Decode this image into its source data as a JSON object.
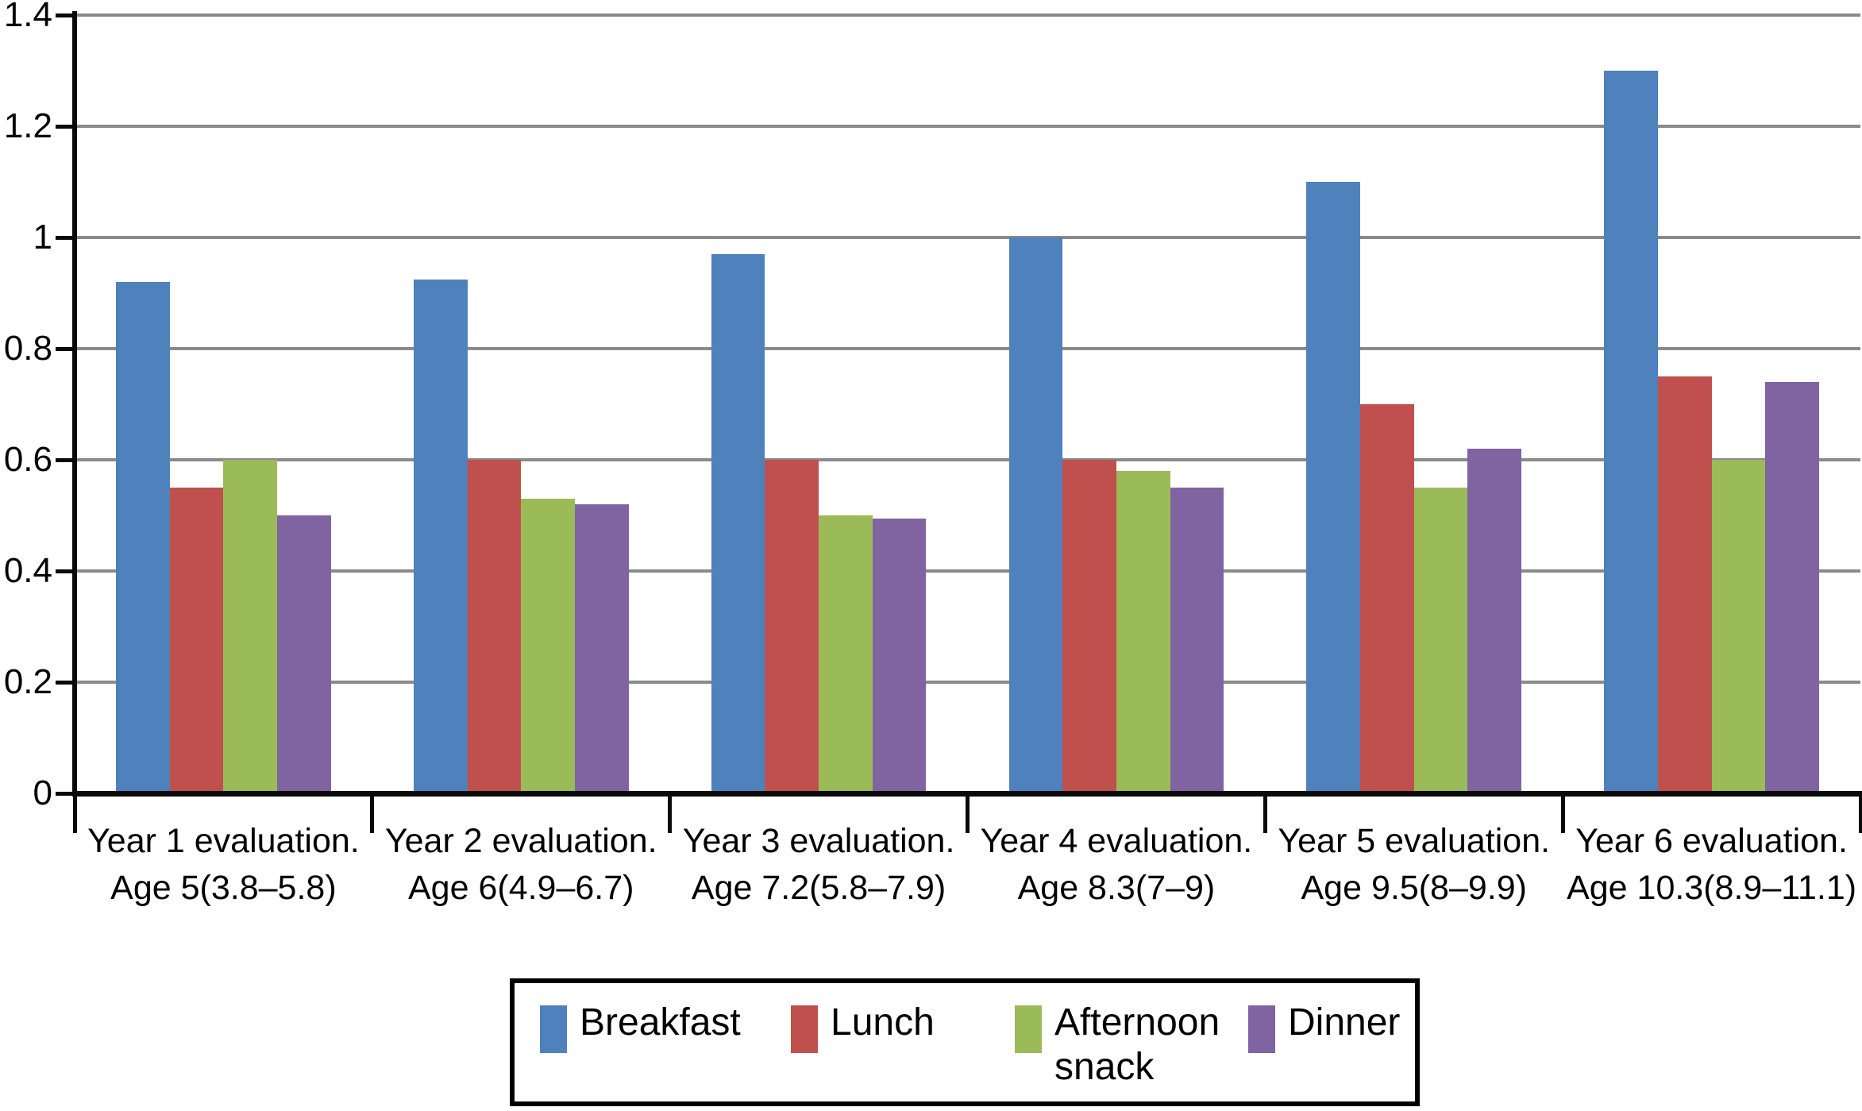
{
  "chart_data": {
    "type": "bar",
    "title": "",
    "xlabel": "",
    "ylabel": "",
    "ylim": [
      0,
      1.4
    ],
    "grid": true,
    "legend_position": "bottom-box",
    "y_ticks": [
      "1.4",
      "1.2",
      "1",
      "0.8",
      "0.6",
      "0.4",
      "0.2",
      "0"
    ],
    "categories": [
      {
        "line1": "Year 1 evaluation.",
        "line2": "Age 5(3.8–5.8)"
      },
      {
        "line1": "Year 2 evaluation.",
        "line2": "Age 6(4.9–6.7)"
      },
      {
        "line1": "Year 3 evaluation.",
        "line2": "Age 7.2(5.8–7.9)"
      },
      {
        "line1": "Year 4 evaluation.",
        "line2": "Age 8.3(7–9)"
      },
      {
        "line1": "Year 5 evaluation.",
        "line2": "Age 9.5(8–9.9)"
      },
      {
        "line1": "Year 6 evaluation.",
        "line2": "Age 10.3(8.9–11.1)"
      }
    ],
    "series": [
      {
        "name": "Breakfast",
        "color": "#4F81BD",
        "values": [
          0.92,
          0.925,
          0.97,
          1.0,
          1.1,
          1.3
        ]
      },
      {
        "name": "Lunch",
        "color": "#C0504D",
        "values": [
          0.55,
          0.6,
          0.6,
          0.6,
          0.7,
          0.75
        ]
      },
      {
        "name": "Afternoon snack",
        "color": "#9BBB59",
        "values": [
          0.6,
          0.53,
          0.5,
          0.58,
          0.55,
          0.6
        ]
      },
      {
        "name": "Dinner",
        "color": "#8064A2",
        "values": [
          0.5,
          0.52,
          0.495,
          0.55,
          0.62,
          0.74
        ]
      }
    ],
    "colors": {
      "gridline": "#8a8a8a",
      "axis": "#0a0a0a",
      "background": "#ffffff"
    }
  }
}
